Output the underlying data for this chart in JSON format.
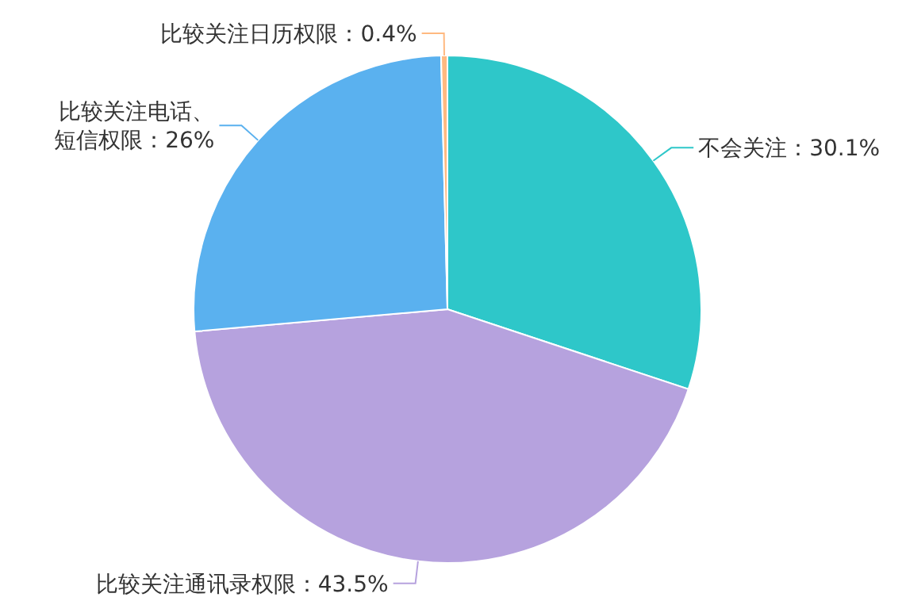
{
  "chart_data": {
    "type": "pie",
    "categories": [
      "不会关注",
      "比较关注通讯录权限",
      "比较关注电话、短信权限",
      "比较关注日历权限"
    ],
    "values": [
      30.1,
      43.5,
      26,
      0.4
    ],
    "value_labels": [
      "30.1%",
      "43.5%",
      "26%",
      "0.4%"
    ],
    "colors": [
      "#2ec7c9",
      "#b6a2de",
      "#5ab1ef",
      "#ffb980"
    ]
  }
}
